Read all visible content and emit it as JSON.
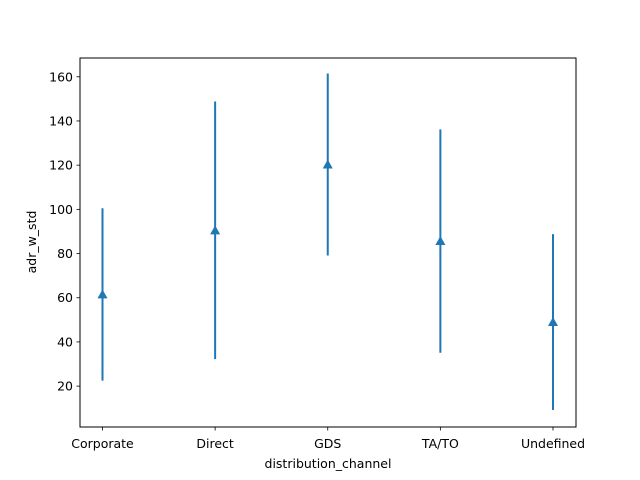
{
  "chart_data": {
    "type": "errorbar",
    "title": "",
    "xlabel": "distribution_channel",
    "ylabel": "adr_w_std",
    "categories": [
      "Corporate",
      "Direct",
      "GDS",
      "TA/TO",
      "Undefined"
    ],
    "values": [
      61.5,
      90.5,
      120.3,
      85.7,
      49.0
    ],
    "error_low": [
      22.5,
      32.2,
      79.1,
      35.1,
      9.2
    ],
    "error_high": [
      100.5,
      148.8,
      161.5,
      136.2,
      88.8
    ],
    "ylim": [
      1.5,
      168.5
    ],
    "yticks": [
      20,
      40,
      60,
      80,
      100,
      120,
      140,
      160
    ],
    "marker": "triangle-up",
    "color": "#1f77b4",
    "grid": false,
    "legend": "none"
  }
}
